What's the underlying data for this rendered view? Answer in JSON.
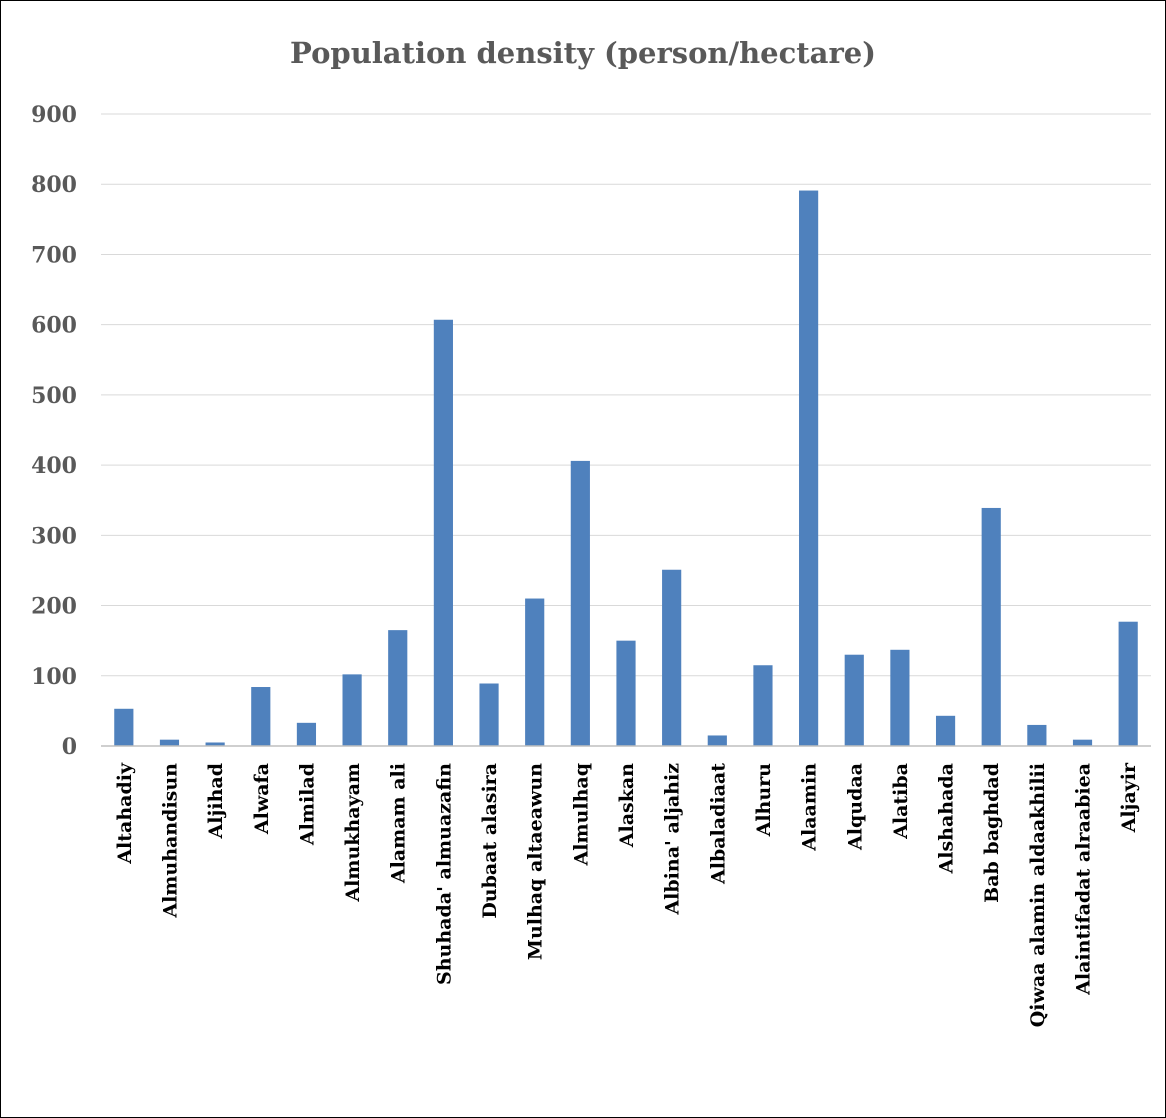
{
  "chart_data": {
    "type": "bar",
    "title": "Population density (person/hectare)",
    "xlabel": "",
    "ylabel": "",
    "ylim": [
      0,
      900
    ],
    "ytick_step": 100,
    "grid": true,
    "legend": "none",
    "bar_color": "#4F81BD",
    "categories": [
      "Altahadiy",
      "Almuhandisun",
      "Aljihad",
      "Alwafa",
      "Almilad",
      "Almukhayam",
      "Alamam ali",
      "Shuhada' almuazafin",
      "Dubaat alasira",
      "Mulhaq altaeawun",
      "Almulhaq",
      "Alaskan",
      "Albina' aljahiz",
      "Albaladiaat",
      "Alhuru",
      "Alaamin",
      "Alqudaa",
      "Alatiba",
      "Alshahada",
      "Bab baghdad",
      "Qiwaa alamin aldaakhilii",
      "Alaintifadat alraabiea",
      "Aljayir"
    ],
    "values": [
      53,
      9,
      5,
      84,
      33,
      102,
      165,
      607,
      89,
      210,
      406,
      150,
      251,
      15,
      115,
      791,
      130,
      137,
      43,
      339,
      30,
      9,
      177
    ]
  }
}
